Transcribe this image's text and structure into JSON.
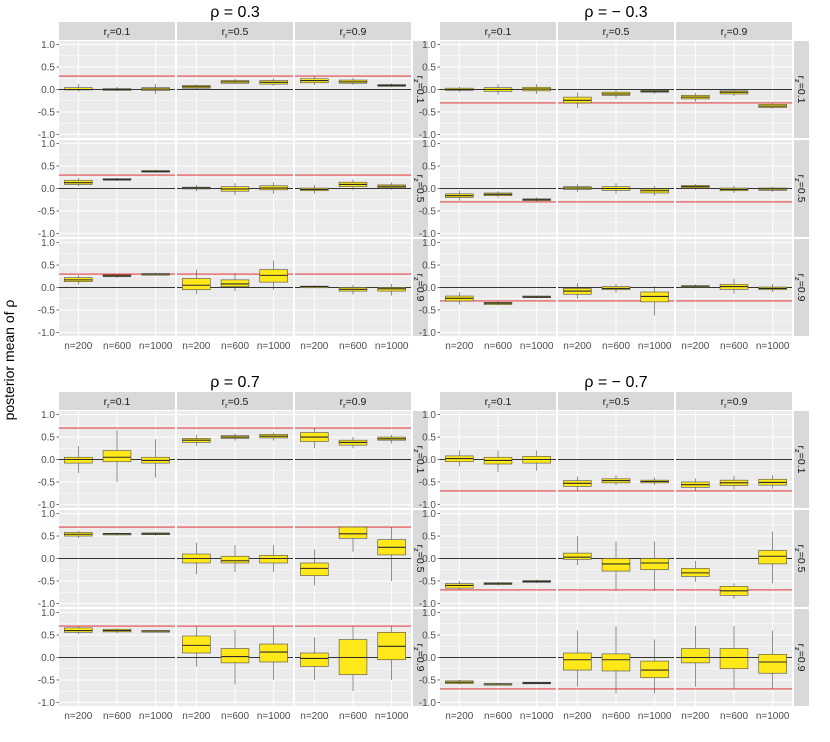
{
  "ylabel": "posterior mean of ρ",
  "facet_col_labels": [
    "r_r=0.1",
    "r_r=0.5",
    "r_r=0.9"
  ],
  "facet_row_labels": [
    "r_z=0.1",
    "r_z=0.5",
    "r_z=0.9"
  ],
  "x_categories": [
    "n=200",
    "n=600",
    "n=1000"
  ],
  "y_ticks": [
    "1.0",
    "0.5",
    "0.0",
    "-0.5",
    "-1.0"
  ],
  "colors": {
    "panel_bg": "#ebebeb",
    "strip_bg": "#d9d9d9",
    "grid": "#ffffff",
    "box_fill": "#ffe81a",
    "box_edge": "#4d4d4d",
    "median": "#2b2b2b",
    "true_line": "#e41a1c",
    "zero_line": "#333333"
  },
  "chart_data": [
    {
      "type": "boxplot",
      "title": "ρ = 0.3",
      "true_value": 0.3,
      "ylim": [
        -1.0,
        1.0
      ],
      "grid": true,
      "boxes": [
        [
          [
            [
              -0.01,
              0.0,
              0.04,
              -0.05,
              0.12
            ],
            [
              -0.02,
              0.0,
              0.02,
              -0.04,
              0.06
            ],
            [
              -0.02,
              0.01,
              0.04,
              -0.1,
              0.12
            ]
          ],
          [
            [
              0.03,
              0.06,
              0.09,
              0.0,
              0.12
            ],
            [
              0.14,
              0.17,
              0.2,
              0.12,
              0.24
            ],
            [
              0.12,
              0.16,
              0.2,
              0.08,
              0.25
            ]
          ],
          [
            [
              0.15,
              0.2,
              0.24,
              0.1,
              0.3
            ],
            [
              0.14,
              0.17,
              0.21,
              0.1,
              0.26
            ],
            [
              0.07,
              0.09,
              0.11,
              0.05,
              0.14
            ]
          ]
        ],
        [
          [
            [
              0.09,
              0.13,
              0.18,
              0.05,
              0.24
            ],
            [
              0.19,
              0.2,
              0.22,
              0.17,
              0.24
            ],
            [
              0.37,
              0.38,
              0.4,
              0.35,
              0.42
            ]
          ],
          [
            [
              -0.01,
              0.01,
              0.03,
              -0.06,
              0.08
            ],
            [
              -0.06,
              -0.01,
              0.04,
              -0.15,
              0.12
            ],
            [
              -0.03,
              0.01,
              0.06,
              -0.12,
              0.14
            ]
          ],
          [
            [
              -0.05,
              -0.02,
              0.01,
              -0.12,
              0.08
            ],
            [
              0.04,
              0.09,
              0.14,
              -0.04,
              0.2
            ],
            [
              0.02,
              0.05,
              0.08,
              -0.03,
              0.14
            ]
          ]
        ],
        [
          [
            [
              0.13,
              0.17,
              0.22,
              0.07,
              0.27
            ],
            [
              0.24,
              0.26,
              0.28,
              0.21,
              0.3
            ],
            [
              0.29,
              0.3,
              0.31,
              0.27,
              0.33
            ]
          ],
          [
            [
              -0.05,
              0.05,
              0.2,
              -0.15,
              0.4
            ],
            [
              0.02,
              0.08,
              0.17,
              -0.08,
              0.32
            ],
            [
              0.12,
              0.27,
              0.4,
              -0.05,
              0.6
            ]
          ],
          [
            [
              0.01,
              0.02,
              0.03,
              -0.01,
              0.05
            ],
            [
              -0.08,
              -0.04,
              0.0,
              -0.16,
              0.06
            ],
            [
              -0.08,
              -0.03,
              0.0,
              -0.18,
              0.08
            ]
          ]
        ]
      ]
    },
    {
      "type": "boxplot",
      "title": "ρ = − 0.3",
      "true_value": -0.3,
      "ylim": [
        -1.0,
        1.0
      ],
      "grid": true,
      "boxes": [
        [
          [
            [
              -0.02,
              0.0,
              0.03,
              -0.06,
              0.06
            ],
            [
              -0.04,
              0.0,
              0.04,
              -0.12,
              0.12
            ],
            [
              -0.03,
              0.01,
              0.05,
              -0.1,
              0.12
            ]
          ],
          [
            [
              -0.3,
              -0.24,
              -0.17,
              -0.42,
              -0.06
            ],
            [
              -0.13,
              -0.1,
              -0.06,
              -0.2,
              0.0
            ],
            [
              -0.06,
              -0.04,
              -0.02,
              -0.1,
              0.0
            ]
          ],
          [
            [
              -0.21,
              -0.17,
              -0.13,
              -0.27,
              -0.07
            ],
            [
              -0.1,
              -0.06,
              -0.03,
              -0.15,
              0.02
            ],
            [
              -0.4,
              -0.37,
              -0.33,
              -0.43,
              -0.29
            ]
          ]
        ],
        [
          [
            [
              -0.2,
              -0.16,
              -0.12,
              -0.27,
              -0.05
            ],
            [
              -0.16,
              -0.13,
              -0.1,
              -0.2,
              -0.06
            ],
            [
              -0.27,
              -0.25,
              -0.23,
              -0.3,
              -0.2
            ]
          ],
          [
            [
              -0.02,
              0.01,
              0.04,
              -0.08,
              0.1
            ],
            [
              -0.04,
              0.0,
              0.04,
              -0.12,
              0.12
            ],
            [
              -0.1,
              -0.05,
              -0.01,
              -0.16,
              0.06
            ]
          ],
          [
            [
              0.01,
              0.04,
              0.07,
              -0.03,
              0.1
            ],
            [
              -0.05,
              -0.02,
              0.01,
              -0.1,
              0.06
            ],
            [
              -0.04,
              -0.01,
              0.01,
              -0.07,
              0.04
            ]
          ]
        ],
        [
          [
            [
              -0.3,
              -0.24,
              -0.19,
              -0.38,
              -0.1
            ],
            [
              -0.38,
              -0.35,
              -0.33,
              -0.4,
              -0.3
            ],
            [
              -0.22,
              -0.21,
              -0.19,
              -0.24,
              -0.18
            ]
          ],
          [
            [
              -0.15,
              -0.08,
              -0.02,
              -0.25,
              0.1
            ],
            [
              -0.05,
              -0.02,
              0.02,
              -0.12,
              0.08
            ],
            [
              -0.32,
              -0.2,
              -0.1,
              -0.62,
              0.03
            ]
          ],
          [
            [
              0.01,
              0.03,
              0.04,
              -0.02,
              0.07
            ],
            [
              -0.04,
              0.02,
              0.07,
              -0.14,
              0.2
            ],
            [
              -0.05,
              -0.02,
              0.01,
              -0.1,
              0.08
            ]
          ]
        ]
      ]
    },
    {
      "type": "boxplot",
      "title": "ρ = 0.7",
      "true_value": 0.7,
      "ylim": [
        -1.0,
        1.0
      ],
      "grid": true,
      "boxes": [
        [
          [
            [
              -0.08,
              0.0,
              0.05,
              -0.3,
              0.3
            ],
            [
              -0.05,
              0.05,
              0.2,
              -0.5,
              0.65
            ],
            [
              -0.08,
              -0.02,
              0.05,
              -0.4,
              0.45
            ]
          ],
          [
            [
              0.38,
              0.43,
              0.47,
              0.3,
              0.55
            ],
            [
              0.47,
              0.5,
              0.53,
              0.42,
              0.58
            ],
            [
              0.48,
              0.52,
              0.56,
              0.42,
              0.6
            ]
          ],
          [
            [
              0.4,
              0.5,
              0.6,
              0.25,
              0.7
            ],
            [
              0.32,
              0.38,
              0.43,
              0.25,
              0.5
            ],
            [
              0.43,
              0.46,
              0.5,
              0.36,
              0.55
            ]
          ]
        ],
        [
          [
            [
              0.5,
              0.54,
              0.58,
              0.45,
              0.62
            ],
            [
              0.54,
              0.55,
              0.56,
              0.52,
              0.58
            ],
            [
              0.53,
              0.55,
              0.57,
              0.51,
              0.59
            ]
          ],
          [
            [
              -0.1,
              0.0,
              0.1,
              -0.35,
              0.35
            ],
            [
              -0.1,
              -0.05,
              0.05,
              -0.3,
              0.3
            ],
            [
              -0.1,
              0.0,
              0.07,
              -0.3,
              0.3
            ]
          ],
          [
            [
              -0.38,
              -0.22,
              -0.1,
              -0.6,
              0.2
            ],
            [
              0.45,
              0.55,
              0.7,
              0.15,
              0.7
            ],
            [
              0.08,
              0.25,
              0.42,
              -0.5,
              0.7
            ]
          ]
        ],
        [
          [
            [
              0.56,
              0.6,
              0.66,
              0.52,
              0.7
            ],
            [
              0.57,
              0.6,
              0.63,
              0.54,
              0.65
            ],
            [
              0.58,
              0.59,
              0.6,
              0.56,
              0.62
            ]
          ],
          [
            [
              0.1,
              0.27,
              0.48,
              -0.2,
              0.7
            ],
            [
              -0.12,
              0.02,
              0.2,
              -0.6,
              0.62
            ],
            [
              -0.1,
              0.12,
              0.3,
              -0.5,
              0.7
            ]
          ],
          [
            [
              -0.2,
              -0.02,
              0.1,
              -0.5,
              0.45
            ],
            [
              -0.38,
              0.0,
              0.4,
              -0.75,
              0.7
            ],
            [
              -0.05,
              0.25,
              0.56,
              -0.5,
              0.7
            ]
          ]
        ]
      ]
    },
    {
      "type": "boxplot",
      "title": "ρ = − 0.7",
      "true_value": -0.7,
      "ylim": [
        -1.0,
        1.0
      ],
      "grid": true,
      "boxes": [
        [
          [
            [
              -0.05,
              0.02,
              0.08,
              -0.15,
              0.2
            ],
            [
              -0.1,
              -0.02,
              0.05,
              -0.28,
              0.2
            ],
            [
              -0.08,
              0.0,
              0.07,
              -0.25,
              0.2
            ]
          ],
          [
            [
              -0.6,
              -0.53,
              -0.47,
              -0.7,
              -0.38
            ],
            [
              -0.52,
              -0.47,
              -0.43,
              -0.58,
              -0.35
            ],
            [
              -0.52,
              -0.49,
              -0.46,
              -0.57,
              -0.4
            ]
          ],
          [
            [
              -0.62,
              -0.56,
              -0.5,
              -0.7,
              -0.42
            ],
            [
              -0.58,
              -0.52,
              -0.46,
              -0.67,
              -0.36
            ],
            [
              -0.57,
              -0.51,
              -0.44,
              -0.65,
              -0.35
            ]
          ]
        ],
        [
          [
            [
              -0.66,
              -0.6,
              -0.56,
              -0.7,
              -0.5
            ],
            [
              -0.58,
              -0.56,
              -0.54,
              -0.6,
              -0.52
            ],
            [
              -0.53,
              -0.51,
              -0.49,
              -0.55,
              -0.47
            ]
          ],
          [
            [
              -0.02,
              0.03,
              0.12,
              -0.15,
              0.5
            ],
            [
              -0.28,
              -0.12,
              0.0,
              -0.72,
              0.38
            ],
            [
              -0.25,
              -0.1,
              0.0,
              -0.72,
              0.38
            ]
          ],
          [
            [
              -0.4,
              -0.32,
              -0.22,
              -0.52,
              -0.05
            ],
            [
              -0.82,
              -0.72,
              -0.62,
              -0.9,
              -0.55
            ],
            [
              -0.12,
              0.05,
              0.18,
              -0.55,
              0.6
            ]
          ]
        ],
        [
          [
            [
              -0.58,
              -0.55,
              -0.52,
              -0.6,
              -0.5
            ],
            [
              -0.61,
              -0.59,
              -0.58,
              -0.62,
              -0.57
            ],
            [
              -0.58,
              -0.57,
              -0.55,
              -0.59,
              -0.54
            ]
          ],
          [
            [
              -0.28,
              -0.05,
              0.1,
              -0.65,
              0.6
            ],
            [
              -0.3,
              -0.05,
              0.08,
              -0.8,
              0.7
            ],
            [
              -0.45,
              -0.28,
              -0.08,
              -0.8,
              0.4
            ]
          ],
          [
            [
              -0.12,
              0.0,
              0.2,
              -0.65,
              0.7
            ],
            [
              -0.25,
              0.0,
              0.2,
              -0.7,
              0.7
            ],
            [
              -0.35,
              -0.1,
              0.07,
              -0.7,
              0.6
            ]
          ]
        ]
      ]
    }
  ]
}
